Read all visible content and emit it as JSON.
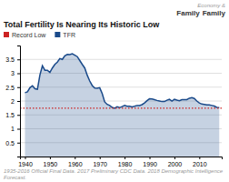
{
  "chart_data": {
    "type": "area",
    "title": "Total Fertility Is Nearing Its Historic Low",
    "footnote": "1935-2016 Official Final Data. 2017 Preliminary CDC Data. 2018 Demographic Intelligence Forecast.",
    "annotations": [
      "Economy &",
      "Family",
      "Family"
    ],
    "x": [
      1940,
      1941,
      1942,
      1943,
      1944,
      1945,
      1946,
      1947,
      1948,
      1949,
      1950,
      1951,
      1952,
      1953,
      1954,
      1955,
      1956,
      1957,
      1958,
      1959,
      1960,
      1961,
      1962,
      1963,
      1964,
      1965,
      1966,
      1967,
      1968,
      1969,
      1970,
      1971,
      1972,
      1973,
      1974,
      1975,
      1976,
      1977,
      1978,
      1979,
      1980,
      1981,
      1982,
      1983,
      1984,
      1985,
      1986,
      1987,
      1988,
      1989,
      1990,
      1991,
      1992,
      1993,
      1994,
      1995,
      1996,
      1997,
      1998,
      1999,
      2000,
      2001,
      2002,
      2003,
      2004,
      2005,
      2006,
      2007,
      2008,
      2009,
      2010,
      2011,
      2012,
      2013,
      2014,
      2015,
      2016,
      2017,
      2018
    ],
    "series": [
      {
        "name": "TFR",
        "color": "#1a4a8a",
        "values": [
          2.3,
          2.33,
          2.48,
          2.55,
          2.44,
          2.42,
          2.94,
          3.27,
          3.11,
          3.11,
          3.03,
          3.19,
          3.32,
          3.4,
          3.53,
          3.5,
          3.63,
          3.68,
          3.67,
          3.7,
          3.65,
          3.6,
          3.46,
          3.32,
          3.19,
          2.93,
          2.72,
          2.56,
          2.47,
          2.46,
          2.48,
          2.27,
          1.97,
          1.88,
          1.84,
          1.77,
          1.74,
          1.79,
          1.76,
          1.8,
          1.84,
          1.81,
          1.81,
          1.79,
          1.81,
          1.84,
          1.84,
          1.87,
          1.93,
          2.01,
          2.08,
          2.07,
          2.05,
          2.02,
          2.0,
          1.98,
          1.98,
          2.03,
          2.06,
          2.0,
          2.06,
          2.03,
          2.01,
          2.05,
          2.05,
          2.05,
          2.1,
          2.12,
          2.09,
          2.0,
          1.93,
          1.89,
          1.88,
          1.86,
          1.86,
          1.84,
          1.82,
          1.77,
          1.76
        ]
      }
    ],
    "record_low": {
      "name": "Record Low",
      "value": 1.74,
      "color": "#cc2222",
      "line_style": "dotted"
    },
    "xlim": [
      1938,
      2019
    ],
    "ylim": [
      0,
      4.0
    ],
    "xticks": [
      1940,
      1950,
      1960,
      1970,
      1980,
      1990,
      2000,
      2010
    ],
    "yticks": [
      0.5,
      1,
      1.5,
      2,
      2.5,
      3,
      3.5
    ],
    "grid": true,
    "legend": "top-left"
  }
}
